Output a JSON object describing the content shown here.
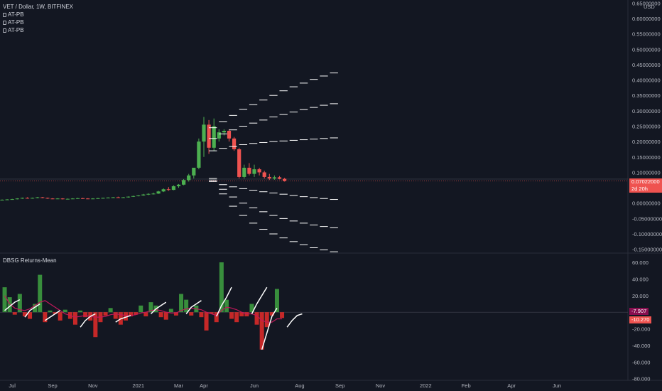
{
  "header": {
    "symbol_line": "VET / Dollar, 1W, BITFINEX",
    "indicators": [
      "AT-PB",
      "AT-PB",
      "AT-PB"
    ],
    "currency": "USD"
  },
  "price_tag": {
    "value": "0.07022000",
    "countdown": "2d 20h",
    "color": "#ef5350"
  },
  "oscillator": {
    "title": "DBSG Returns-Mean",
    "tag_a": {
      "value": "-7.907",
      "color": "#880e4f"
    },
    "tag_b": {
      "value": "-10.270",
      "color": "#ef5350"
    }
  },
  "colors": {
    "up": "#26a69a",
    "bull_bar": "#388e3c",
    "bear_bar": "#c62828",
    "candle_up": "#4caf50",
    "candle_down": "#ef5350",
    "band": "#ffffff",
    "mean_line": "#c2185b",
    "background": "#131722"
  },
  "chart_data": [
    {
      "type": "candlestick",
      "title": "VET / Dollar, 1W, BITFINEX",
      "ylabel": "USD",
      "ylim": [
        -0.16,
        0.66
      ],
      "y_ticks": [
        -0.15,
        -0.1,
        -0.05,
        0.0,
        0.05,
        0.1,
        0.15,
        0.2,
        0.25,
        0.3,
        0.35,
        0.4,
        0.45,
        0.5,
        0.55,
        0.6,
        0.65
      ],
      "y_tick_labels": [
        "-0.15000000",
        "-0.10000000",
        "-0.05000000",
        "0.00000000",
        "0.05000000",
        "0.10000000",
        "0.15000000",
        "0.20000000",
        "0.25000000",
        "0.30000000",
        "0.35000000",
        "0.40000000",
        "0.45000000",
        "0.50000000",
        "0.55000000",
        "0.60000000",
        "0.65000000"
      ],
      "x_labels": [
        "Jul",
        "Sep",
        "Nov",
        "2021",
        "Mar",
        "Apr",
        "Jun",
        "Aug",
        "Sep",
        "Nov",
        "2022",
        "Feb",
        "Apr",
        "Jun"
      ],
      "x_label_weeks": [
        2,
        10,
        18,
        27,
        35,
        40,
        50,
        59,
        67,
        75,
        84,
        92,
        101,
        110
      ],
      "candles": [
        {
          "o": 0.01,
          "h": 0.012,
          "l": 0.009,
          "c": 0.011
        },
        {
          "o": 0.011,
          "h": 0.013,
          "l": 0.01,
          "c": 0.012
        },
        {
          "o": 0.012,
          "h": 0.014,
          "l": 0.011,
          "c": 0.013
        },
        {
          "o": 0.013,
          "h": 0.016,
          "l": 0.012,
          "c": 0.015
        },
        {
          "o": 0.015,
          "h": 0.018,
          "l": 0.014,
          "c": 0.017
        },
        {
          "o": 0.017,
          "h": 0.019,
          "l": 0.015,
          "c": 0.016
        },
        {
          "o": 0.016,
          "h": 0.018,
          "l": 0.015,
          "c": 0.017
        },
        {
          "o": 0.017,
          "h": 0.02,
          "l": 0.016,
          "c": 0.019
        },
        {
          "o": 0.019,
          "h": 0.02,
          "l": 0.016,
          "c": 0.017
        },
        {
          "o": 0.017,
          "h": 0.018,
          "l": 0.014,
          "c": 0.015
        },
        {
          "o": 0.015,
          "h": 0.016,
          "l": 0.013,
          "c": 0.014
        },
        {
          "o": 0.014,
          "h": 0.016,
          "l": 0.013,
          "c": 0.015
        },
        {
          "o": 0.015,
          "h": 0.016,
          "l": 0.012,
          "c": 0.013
        },
        {
          "o": 0.013,
          "h": 0.015,
          "l": 0.012,
          "c": 0.014
        },
        {
          "o": 0.014,
          "h": 0.016,
          "l": 0.013,
          "c": 0.015
        },
        {
          "o": 0.015,
          "h": 0.017,
          "l": 0.014,
          "c": 0.016
        },
        {
          "o": 0.016,
          "h": 0.017,
          "l": 0.014,
          "c": 0.015
        },
        {
          "o": 0.015,
          "h": 0.016,
          "l": 0.013,
          "c": 0.014
        },
        {
          "o": 0.014,
          "h": 0.016,
          "l": 0.013,
          "c": 0.015
        },
        {
          "o": 0.015,
          "h": 0.017,
          "l": 0.014,
          "c": 0.016
        },
        {
          "o": 0.016,
          "h": 0.018,
          "l": 0.015,
          "c": 0.017
        },
        {
          "o": 0.017,
          "h": 0.019,
          "l": 0.016,
          "c": 0.018
        },
        {
          "o": 0.018,
          "h": 0.02,
          "l": 0.017,
          "c": 0.019
        },
        {
          "o": 0.019,
          "h": 0.021,
          "l": 0.017,
          "c": 0.018
        },
        {
          "o": 0.018,
          "h": 0.02,
          "l": 0.017,
          "c": 0.019
        },
        {
          "o": 0.019,
          "h": 0.022,
          "l": 0.018,
          "c": 0.021
        },
        {
          "o": 0.021,
          "h": 0.024,
          "l": 0.02,
          "c": 0.023
        },
        {
          "o": 0.023,
          "h": 0.026,
          "l": 0.022,
          "c": 0.025
        },
        {
          "o": 0.025,
          "h": 0.03,
          "l": 0.024,
          "c": 0.028
        },
        {
          "o": 0.028,
          "h": 0.032,
          "l": 0.026,
          "c": 0.03
        },
        {
          "o": 0.03,
          "h": 0.034,
          "l": 0.028,
          "c": 0.031
        },
        {
          "o": 0.031,
          "h": 0.04,
          "l": 0.03,
          "c": 0.038
        },
        {
          "o": 0.038,
          "h": 0.048,
          "l": 0.036,
          "c": 0.045
        },
        {
          "o": 0.045,
          "h": 0.052,
          "l": 0.04,
          "c": 0.043
        },
        {
          "o": 0.043,
          "h": 0.058,
          "l": 0.042,
          "c": 0.055
        },
        {
          "o": 0.055,
          "h": 0.062,
          "l": 0.05,
          "c": 0.06
        },
        {
          "o": 0.06,
          "h": 0.078,
          "l": 0.058,
          "c": 0.075
        },
        {
          "o": 0.075,
          "h": 0.095,
          "l": 0.07,
          "c": 0.09
        },
        {
          "o": 0.09,
          "h": 0.11,
          "l": 0.08,
          "c": 0.115
        },
        {
          "o": 0.115,
          "h": 0.21,
          "l": 0.11,
          "c": 0.2
        },
        {
          "o": 0.2,
          "h": 0.28,
          "l": 0.15,
          "c": 0.255
        },
        {
          "o": 0.255,
          "h": 0.27,
          "l": 0.16,
          "c": 0.18
        },
        {
          "o": 0.18,
          "h": 0.275,
          "l": 0.17,
          "c": 0.25
        },
        {
          "o": 0.21,
          "h": 0.24,
          "l": 0.2,
          "c": 0.23
        },
        {
          "o": 0.23,
          "h": 0.24,
          "l": 0.22,
          "c": 0.235
        },
        {
          "o": 0.235,
          "h": 0.24,
          "l": 0.2,
          "c": 0.21
        },
        {
          "o": 0.21,
          "h": 0.215,
          "l": 0.17,
          "c": 0.175
        },
        {
          "o": 0.175,
          "h": 0.18,
          "l": 0.08,
          "c": 0.085
        },
        {
          "o": 0.085,
          "h": 0.125,
          "l": 0.08,
          "c": 0.115
        },
        {
          "o": 0.115,
          "h": 0.13,
          "l": 0.09,
          "c": 0.095
        },
        {
          "o": 0.095,
          "h": 0.125,
          "l": 0.085,
          "c": 0.11
        },
        {
          "o": 0.11,
          "h": 0.115,
          "l": 0.09,
          "c": 0.1
        },
        {
          "o": 0.1,
          "h": 0.105,
          "l": 0.08,
          "c": 0.085
        },
        {
          "o": 0.085,
          "h": 0.095,
          "l": 0.075,
          "c": 0.08
        },
        {
          "o": 0.08,
          "h": 0.09,
          "l": 0.076,
          "c": 0.084
        },
        {
          "o": 0.084,
          "h": 0.088,
          "l": 0.077,
          "c": 0.079
        },
        {
          "o": 0.079,
          "h": 0.082,
          "l": 0.07,
          "c": 0.072
        }
      ],
      "bands": [
        {
          "name": "upper-3",
          "values": [
            0.245,
            0.265,
            0.285,
            0.305,
            0.32,
            0.335,
            0.35,
            0.365,
            0.378,
            0.39,
            0.402,
            0.413,
            0.423
          ]
        },
        {
          "name": "upper-2",
          "values": [
            0.21,
            0.225,
            0.238,
            0.25,
            0.26,
            0.27,
            0.28,
            0.288,
            0.296,
            0.304,
            0.311,
            0.318,
            0.323
          ]
        },
        {
          "name": "upper-1",
          "values": [
            0.17,
            0.178,
            0.184,
            0.19,
            0.194,
            0.197,
            0.2,
            0.202,
            0.204,
            0.206,
            0.208,
            0.21,
            0.212
          ]
        },
        {
          "name": "lower-1",
          "values": [
            0.07,
            0.06,
            0.053,
            0.047,
            0.042,
            0.037,
            0.033,
            0.029,
            0.025,
            0.021,
            0.018,
            0.015,
            0.012
          ]
        },
        {
          "name": "lower-2",
          "values": [
            0.075,
            0.045,
            0.02,
            0.0,
            -0.015,
            -0.028,
            -0.04,
            -0.05,
            -0.058,
            -0.065,
            -0.071,
            -0.076,
            -0.08
          ]
        },
        {
          "name": "lower-3",
          "values": [
            0.08,
            0.03,
            -0.01,
            -0.04,
            -0.065,
            -0.085,
            -0.1,
            -0.113,
            -0.125,
            -0.135,
            -0.145,
            -0.152,
            -0.158
          ]
        }
      ],
      "band_start_week": 41
    },
    {
      "type": "bar",
      "title": "DBSG Returns-Mean",
      "ylim": [
        -82,
        66
      ],
      "y_ticks": [
        -80,
        -60,
        -40,
        -20,
        0,
        20,
        40,
        60
      ],
      "y_tick_labels": [
        "-80.000",
        "-60.000",
        "-40.000",
        "-20.000",
        "",
        "20.000",
        "40.000",
        "60.000"
      ],
      "values": [
        30,
        18,
        -3,
        22,
        -5,
        -8,
        10,
        45,
        -12,
        2,
        -2,
        -10,
        3,
        -8,
        -15,
        2,
        -6,
        -10,
        -30,
        -12,
        -4,
        5,
        -8,
        -15,
        -10,
        -5,
        -3,
        8,
        -5,
        12,
        8,
        -6,
        -9,
        4,
        -4,
        22,
        15,
        -4,
        8,
        -6,
        -22,
        -2,
        -12,
        60,
        15,
        -8,
        -12,
        -5,
        -5,
        10,
        -15,
        -45,
        -18,
        -4,
        28,
        -7
      ],
      "mean_line": [
        20,
        10,
        5,
        3,
        2,
        4,
        8,
        12,
        14,
        10,
        6,
        2,
        -2,
        -4,
        -6,
        -5,
        -4,
        -5,
        -6,
        -6,
        -5,
        -3,
        -2,
        -3,
        -4,
        -4,
        -3,
        -1,
        0,
        2,
        3,
        2,
        0,
        -1,
        -1,
        2,
        4,
        5,
        4,
        3,
        0,
        -2,
        -4,
        2,
        6,
        5,
        3,
        0,
        -2,
        -2,
        -4,
        -10,
        -12,
        -12,
        -8,
        -8
      ],
      "white_segments": [
        [
          0,
          [
            2,
            7,
            12,
            15
          ]
        ],
        [
          4,
          [
            -6,
            2,
            6,
            10
          ]
        ],
        [
          8,
          [
            -10,
            -6,
            -2,
            2
          ]
        ],
        [
          15,
          [
            -18,
            -10,
            -5,
            -2
          ]
        ],
        [
          22,
          [
            -12,
            -8,
            -6,
            -4
          ]
        ],
        [
          29,
          [
            -2,
            4,
            8,
            12
          ]
        ],
        [
          36,
          [
            -2,
            6,
            10,
            14
          ]
        ],
        [
          42,
          [
            -5,
            8,
            18,
            30
          ]
        ],
        [
          49,
          [
            -2,
            10,
            20,
            30
          ]
        ],
        [
          51,
          [
            -45,
            -25,
            -5,
            5
          ]
        ],
        [
          56,
          [
            -18,
            -10,
            -4,
            -2
          ]
        ]
      ]
    }
  ]
}
